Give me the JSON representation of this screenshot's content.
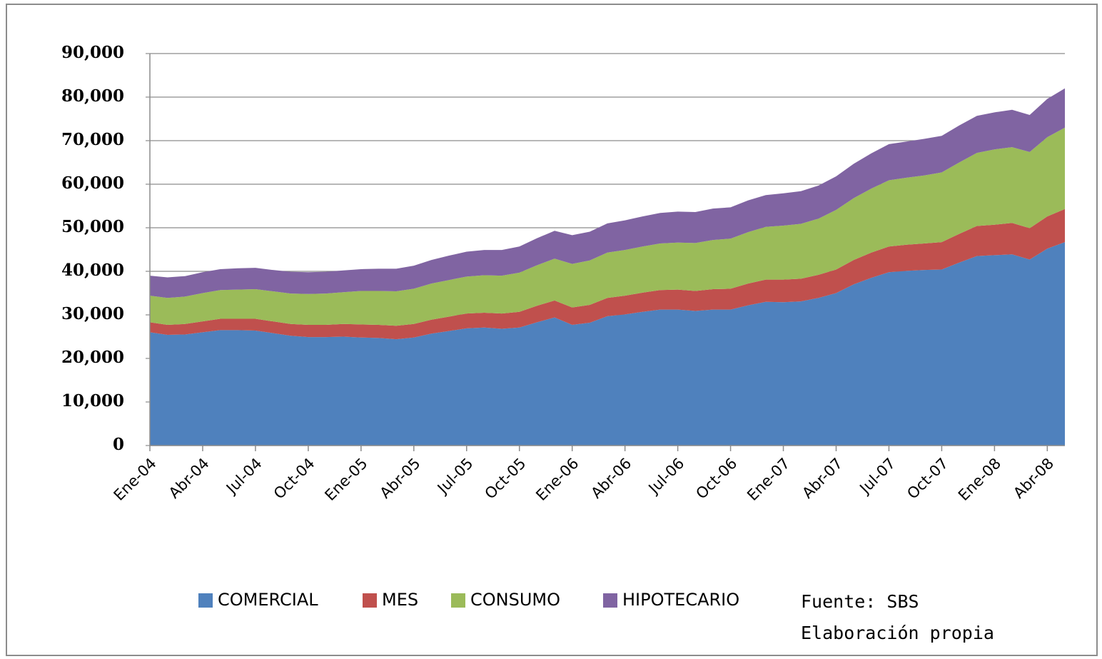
{
  "chart_data": {
    "type": "stacked_area",
    "categories": [
      "Ene-04",
      null,
      null,
      "Abr-04",
      null,
      null,
      "Jul-04",
      null,
      null,
      "Oct-04",
      null,
      null,
      "Ene-05",
      null,
      null,
      "Abr-05",
      null,
      null,
      "Jul-05",
      null,
      null,
      "Oct-05",
      null,
      null,
      "Ene-06",
      null,
      null,
      "Abr-06",
      null,
      null,
      "Jul-06",
      null,
      null,
      "Oct-06",
      null,
      null,
      "Ene-07",
      null,
      null,
      "Abr-07",
      null,
      null,
      "Jul-07",
      null,
      null,
      "Oct-07",
      null,
      null,
      "Ene-08",
      null,
      null,
      "Abr-08",
      null
    ],
    "series": [
      {
        "name": "COMERCIAL",
        "color": "#4f81bd",
        "values": [
          26000,
          25400,
          25500,
          26000,
          26500,
          26500,
          26400,
          25800,
          25200,
          24900,
          24900,
          25000,
          24800,
          24700,
          24400,
          24800,
          25700,
          26300,
          26900,
          27100,
          26800,
          27100,
          28300,
          29400,
          27700,
          28200,
          29700,
          30100,
          30700,
          31200,
          31200,
          30900,
          31200,
          31200,
          32200,
          33000,
          32900,
          33100,
          33900,
          35000,
          37000,
          38500,
          39800,
          40100,
          40300,
          40400,
          42000,
          43500,
          43700,
          43900,
          42700,
          45200,
          46700
        ]
      },
      {
        "name": "MES",
        "color": "#c0504d",
        "values": [
          2300,
          2300,
          2400,
          2500,
          2600,
          2600,
          2700,
          2700,
          2700,
          2800,
          2800,
          2900,
          3000,
          3000,
          3100,
          3100,
          3200,
          3300,
          3400,
          3400,
          3500,
          3600,
          3800,
          3900,
          4000,
          4100,
          4200,
          4300,
          4400,
          4500,
          4600,
          4600,
          4700,
          4800,
          5000,
          5100,
          5200,
          5200,
          5300,
          5400,
          5600,
          5800,
          5900,
          6000,
          6100,
          6300,
          6600,
          6900,
          7000,
          7200,
          7200,
          7400,
          7600
        ]
      },
      {
        "name": "CONSUMO",
        "color": "#9bbb59",
        "values": [
          6100,
          6200,
          6300,
          6500,
          6600,
          6700,
          6800,
          6900,
          7000,
          7100,
          7200,
          7300,
          7700,
          7800,
          7900,
          8100,
          8300,
          8400,
          8500,
          8600,
          8700,
          9000,
          9300,
          9600,
          10000,
          10200,
          10400,
          10500,
          10600,
          10700,
          10800,
          11000,
          11300,
          11500,
          11800,
          12100,
          12400,
          12600,
          12900,
          13700,
          14200,
          14700,
          15200,
          15400,
          15600,
          16000,
          16400,
          16800,
          17300,
          17400,
          17500,
          18200,
          18700
        ]
      },
      {
        "name": "HIPOTECARIO",
        "color": "#8064a2",
        "values": [
          4600,
          4700,
          4700,
          4800,
          4800,
          4900,
          4900,
          4900,
          5000,
          5000,
          5000,
          5000,
          5000,
          5100,
          5200,
          5300,
          5400,
          5600,
          5700,
          5800,
          5900,
          6000,
          6200,
          6400,
          6600,
          6600,
          6700,
          6800,
          6900,
          7000,
          7100,
          7100,
          7200,
          7200,
          7300,
          7300,
          7400,
          7500,
          7600,
          7700,
          7900,
          8100,
          8300,
          8300,
          8400,
          8400,
          8500,
          8500,
          8500,
          8600,
          8500,
          8800,
          9000
        ]
      }
    ],
    "ylim": [
      0,
      90000
    ],
    "yticks": [
      0,
      {
        "value": 10000,
        "label": "10,000"
      },
      {
        "value": 20000,
        "label": "20,000"
      },
      {
        "value": 30000,
        "label": "30,000"
      },
      {
        "value": 40000,
        "label": "40,000"
      },
      {
        "value": 50000,
        "label": "50,000"
      },
      {
        "value": 60000,
        "label": "60,000"
      },
      {
        "value": 70000,
        "label": "70,000"
      },
      {
        "value": 80000,
        "label": "80,000"
      },
      {
        "value": 90000,
        "label": "90,000"
      }
    ],
    "grid": true,
    "legend": "bottom",
    "annotations": [
      "Fuente: SBS",
      "Elaboración propia"
    ]
  }
}
